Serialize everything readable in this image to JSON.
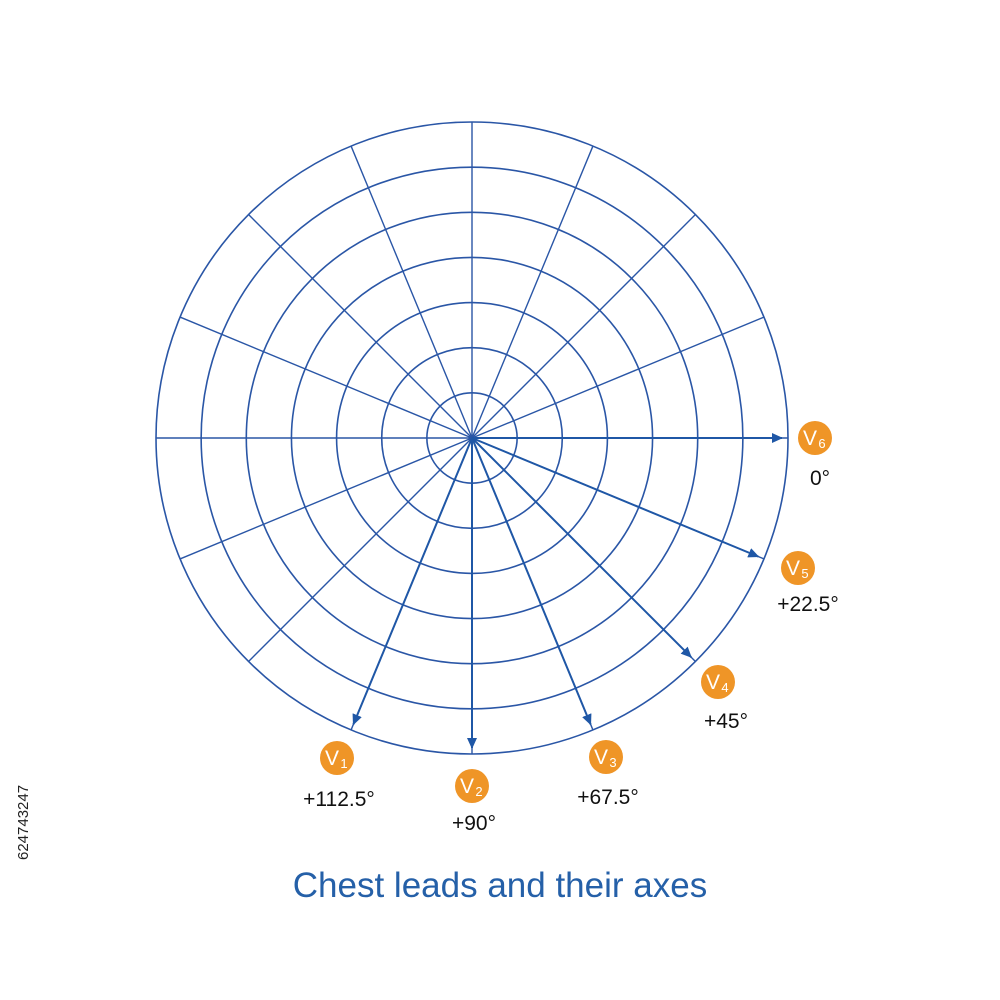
{
  "title": "Chest leads and their axes",
  "watermark_id": "624743247",
  "colors": {
    "grid": "#2a56a6",
    "arrow": "#1f57a6",
    "badge": "#ef9527",
    "title": "#2560a8"
  },
  "grid": {
    "rings": 7,
    "spokes": 16,
    "spoke_step_deg": 22.5
  },
  "leads": [
    {
      "name": "V",
      "sub": "6",
      "angle_label": "0°",
      "angle_deg": 0
    },
    {
      "name": "V",
      "sub": "5",
      "angle_label": "+22.5°",
      "angle_deg": 22.5
    },
    {
      "name": "V",
      "sub": "4",
      "angle_label": "+45°",
      "angle_deg": 45
    },
    {
      "name": "V",
      "sub": "3",
      "angle_label": "+67.5°",
      "angle_deg": 67.5
    },
    {
      "name": "V",
      "sub": "2",
      "angle_label": "+90°",
      "angle_deg": 90
    },
    {
      "name": "V",
      "sub": "1",
      "angle_label": "+112.5°",
      "angle_deg": 112.5
    }
  ]
}
